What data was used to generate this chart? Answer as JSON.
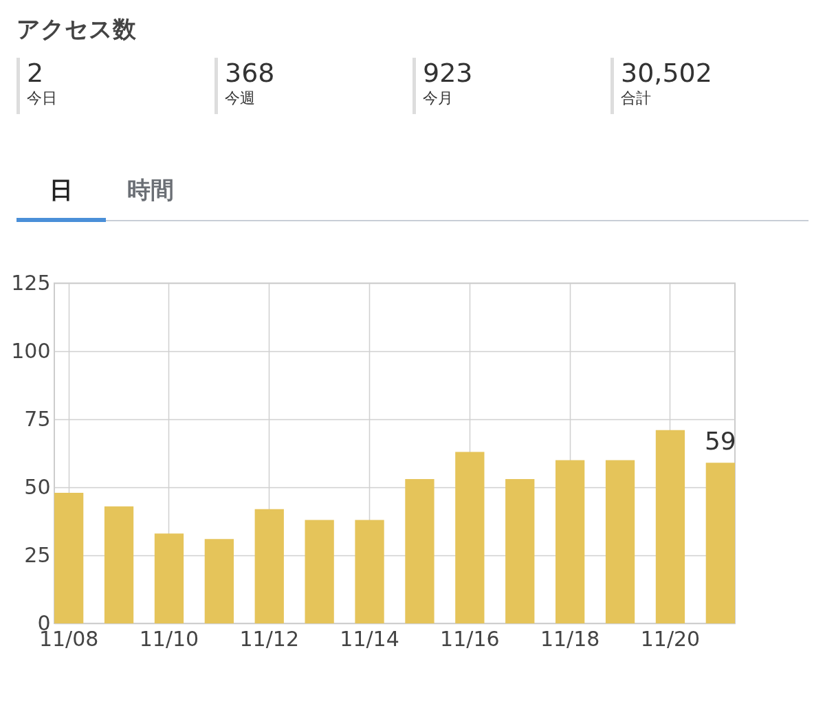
{
  "chart_data": [
    {
      "type": "other",
      "title": "アクセス数",
      "categories": [
        "今日",
        "今週",
        "今月",
        "合計"
      ],
      "values": [
        2,
        368,
        923,
        30502
      ],
      "value_labels": [
        "2",
        "368",
        "923",
        "30,502"
      ]
    },
    {
      "type": "bar",
      "annotations": [
        "日",
        "時間"
      ],
      "categories": [
        "11/08",
        null,
        "11/10",
        null,
        "11/12",
        null,
        "11/14",
        null,
        "11/16",
        null,
        "11/18",
        null,
        "11/20",
        null
      ],
      "values": [
        48,
        43,
        33,
        31,
        42,
        38,
        38,
        53,
        63,
        53,
        60,
        60,
        71,
        59
      ],
      "value_labels": [
        null,
        null,
        null,
        null,
        null,
        null,
        null,
        null,
        null,
        null,
        null,
        null,
        null,
        "59"
      ],
      "color": "#e5c45a",
      "ylim": [
        0,
        125
      ],
      "yticks": [
        0,
        25,
        50,
        75,
        100,
        125
      ],
      "grid": true
    }
  ]
}
